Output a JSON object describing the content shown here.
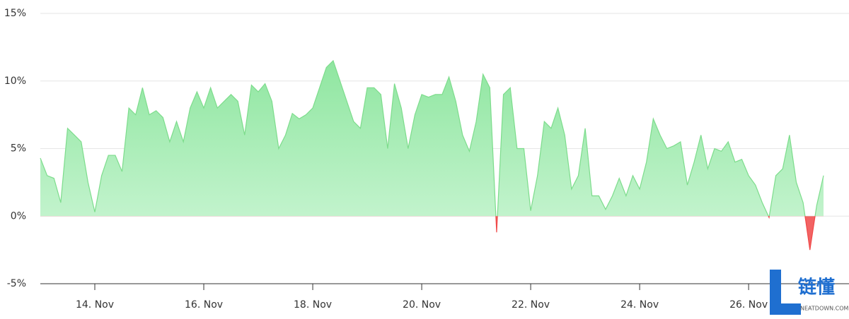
{
  "chart_data": {
    "type": "area",
    "x": [
      13,
      13.125,
      13.25,
      13.375,
      13.5,
      13.625,
      13.75,
      13.875,
      14,
      14.125,
      14.25,
      14.375,
      14.5,
      14.625,
      14.75,
      14.875,
      15,
      15.125,
      15.25,
      15.375,
      15.5,
      15.625,
      15.75,
      15.875,
      16,
      16.125,
      16.25,
      16.375,
      16.5,
      16.625,
      16.75,
      16.875,
      17,
      17.125,
      17.25,
      17.375,
      17.5,
      17.625,
      17.75,
      17.875,
      18,
      18.125,
      18.25,
      18.375,
      18.5,
      18.625,
      18.75,
      18.875,
      19,
      19.125,
      19.25,
      19.375,
      19.5,
      19.625,
      19.75,
      19.875,
      20,
      20.125,
      20.25,
      20.375,
      20.5,
      20.625,
      20.75,
      20.875,
      21,
      21.125,
      21.25,
      21.375,
      21.5,
      21.625,
      21.75,
      21.875,
      22,
      22.125,
      22.25,
      22.375,
      22.5,
      22.625,
      22.75,
      22.875,
      23,
      23.125,
      23.25,
      23.375,
      23.5,
      23.625,
      23.75,
      23.875,
      24,
      24.125,
      24.25,
      24.375,
      24.5,
      24.625,
      24.75,
      24.875,
      25,
      25.125,
      25.25,
      25.375,
      25.5,
      25.625,
      25.75,
      25.875,
      26,
      26.125,
      26.25,
      26.375,
      26.5,
      26.625,
      26.75,
      26.875,
      27,
      27.125,
      27.25,
      27.375
    ],
    "series": [
      {
        "color": "#7ddc8c",
        "negative_color": "#f04848",
        "values": [
          4.3,
          3.0,
          2.8,
          1.0,
          6.5,
          6.0,
          5.5,
          2.5,
          0.3,
          3.0,
          4.5,
          4.5,
          3.3,
          8.0,
          7.5,
          9.5,
          7.5,
          7.8,
          7.3,
          5.5,
          7.0,
          5.5,
          8.0,
          9.2,
          8.0,
          9.5,
          8.0,
          8.5,
          9.0,
          8.5,
          6.0,
          9.7,
          9.2,
          9.8,
          8.5,
          5.0,
          6.0,
          7.6,
          7.2,
          7.5,
          8.0,
          9.5,
          11.0,
          11.5,
          10.0,
          8.5,
          7.0,
          6.5,
          9.5,
          9.5,
          9.0,
          5.0,
          9.8,
          8.0,
          5.0,
          7.5,
          9.0,
          8.8,
          9.0,
          9.0,
          10.3,
          8.5,
          6.0,
          4.8,
          7.0,
          10.5,
          9.5,
          -1.2,
          9.0,
          9.5,
          5.0,
          5.0,
          0.4,
          3.0,
          7.0,
          6.5,
          8.0,
          6.0,
          2.0,
          3.0,
          6.5,
          1.5,
          1.5,
          0.5,
          1.5,
          2.8,
          1.5,
          3.0,
          2.0,
          4.0,
          7.2,
          6.0,
          5.0,
          5.2,
          5.5,
          2.3,
          4.0,
          6.0,
          3.5,
          5.0,
          4.8,
          5.5,
          4.0,
          4.2,
          3.0,
          2.3,
          1.0,
          -0.1,
          3.0,
          3.5,
          6.0,
          2.5,
          1.0,
          -2.5,
          0.8,
          3.0
        ]
      }
    ],
    "xlim": [
      13,
      27.375
    ],
    "xticks": [
      {
        "value": 14,
        "label": "14. Nov"
      },
      {
        "value": 16,
        "label": "16. Nov"
      },
      {
        "value": 18,
        "label": "18. Nov"
      },
      {
        "value": 20,
        "label": "20. Nov"
      },
      {
        "value": 22,
        "label": "22. Nov"
      },
      {
        "value": 24,
        "label": "24. Nov"
      },
      {
        "value": 26,
        "label": "26. Nov"
      }
    ],
    "ylim": [
      -5,
      15
    ],
    "yticks": [
      {
        "value": -5,
        "label": "-5%"
      },
      {
        "value": 0,
        "label": "0%"
      },
      {
        "value": 5,
        "label": "5%"
      },
      {
        "value": 10,
        "label": "10%"
      },
      {
        "value": 15,
        "label": "15%"
      }
    ],
    "grid": true
  },
  "watermark": {
    "title": "链懂",
    "subtitle": "NEATDOWN.COM"
  }
}
